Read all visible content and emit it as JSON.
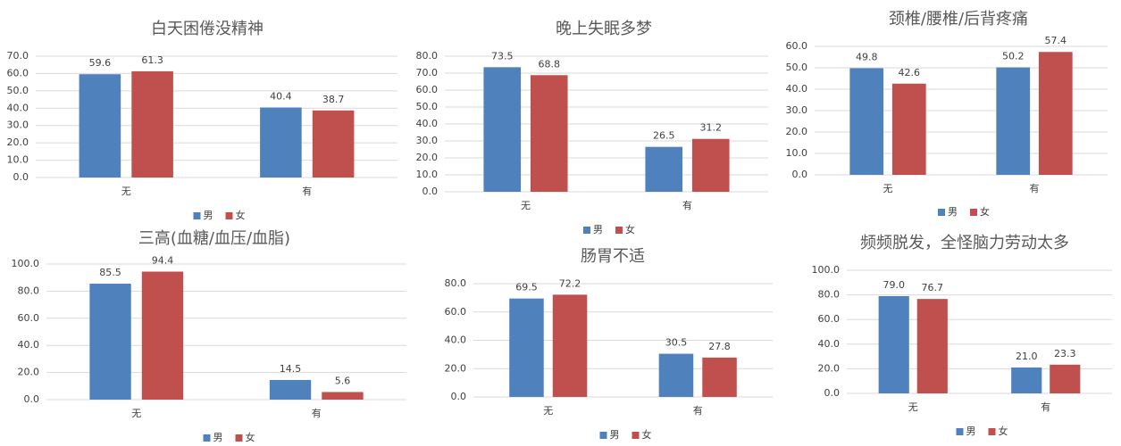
{
  "chart_data": [
    {
      "type": "bar",
      "title": "白天困倦没精神",
      "categories": [
        "无",
        "有"
      ],
      "series": [
        {
          "name": "男",
          "color": "#4f81bd",
          "values": [
            59.6,
            40.4
          ]
        },
        {
          "name": "女",
          "color": "#c0504d",
          "values": [
            61.3,
            38.7
          ]
        }
      ],
      "ylim": [
        0,
        70
      ],
      "yticks": [
        {
          "value": 0,
          "label": "0.0"
        },
        {
          "value": 10,
          "label": "10.0"
        },
        {
          "value": 20,
          "label": "20.0"
        },
        {
          "value": 30,
          "label": "30.0"
        },
        {
          "value": 40,
          "label": "40.0"
        },
        {
          "value": 50,
          "label": "50.0"
        },
        {
          "value": 60,
          "label": "60.0"
        },
        {
          "value": 70,
          "label": "70.0"
        }
      ],
      "grid": true,
      "legend": "bottom"
    },
    {
      "type": "bar",
      "title": "晚上失眠多梦",
      "categories": [
        "无",
        "有"
      ],
      "series": [
        {
          "name": "男",
          "color": "#4f81bd",
          "values": [
            73.5,
            26.5
          ]
        },
        {
          "name": "女",
          "color": "#c0504d",
          "values": [
            68.8,
            31.2
          ]
        }
      ],
      "ylim": [
        0,
        80
      ],
      "yticks": [
        {
          "value": 0,
          "label": "0.0"
        },
        {
          "value": 10,
          "label": "10.0"
        },
        {
          "value": 20,
          "label": "20.0"
        },
        {
          "value": 30,
          "label": "30.0"
        },
        {
          "value": 40,
          "label": "40.0"
        },
        {
          "value": 50,
          "label": "50.0"
        },
        {
          "value": 60,
          "label": "60.0"
        },
        {
          "value": 70,
          "label": "70.0"
        },
        {
          "value": 80,
          "label": "80.0"
        }
      ],
      "grid": true,
      "legend": "bottom"
    },
    {
      "type": "bar",
      "title": "颈椎/腰椎/后背疼痛",
      "categories": [
        "无",
        "有"
      ],
      "series": [
        {
          "name": "男",
          "color": "#4f81bd",
          "values": [
            49.8,
            50.2
          ]
        },
        {
          "name": "女",
          "color": "#c0504d",
          "values": [
            42.6,
            57.4
          ]
        }
      ],
      "ylim": [
        0,
        60
      ],
      "yticks": [
        {
          "value": 0,
          "label": "0.0"
        },
        {
          "value": 10,
          "label": "10.0"
        },
        {
          "value": 20,
          "label": "20.0"
        },
        {
          "value": 30,
          "label": "30.0"
        },
        {
          "value": 40,
          "label": "40.0"
        },
        {
          "value": 50,
          "label": "50.0"
        },
        {
          "value": 60,
          "label": "60.0"
        }
      ],
      "grid": true,
      "legend": "bottom"
    },
    {
      "type": "bar",
      "title": "三高(血糖/血压/血脂)",
      "categories": [
        "无",
        "有"
      ],
      "series": [
        {
          "name": "男",
          "color": "#4f81bd",
          "values": [
            85.5,
            14.5
          ]
        },
        {
          "name": "女",
          "color": "#c0504d",
          "values": [
            94.4,
            5.6
          ]
        }
      ],
      "ylim": [
        0,
        100
      ],
      "yticks": [
        {
          "value": 0,
          "label": "0.0"
        },
        {
          "value": 20,
          "label": "20.0"
        },
        {
          "value": 40,
          "label": "40.0"
        },
        {
          "value": 60,
          "label": "60.0"
        },
        {
          "value": 80,
          "label": "80.0"
        },
        {
          "value": 100,
          "label": "100.0"
        }
      ],
      "grid": true,
      "legend": "bottom"
    },
    {
      "type": "bar",
      "title": "肠胃不适",
      "categories": [
        "无",
        "有"
      ],
      "series": [
        {
          "name": "男",
          "color": "#4f81bd",
          "values": [
            69.5,
            30.5
          ]
        },
        {
          "name": "女",
          "color": "#c0504d",
          "values": [
            72.2,
            27.8
          ]
        }
      ],
      "ylim": [
        0,
        80
      ],
      "yticks": [
        {
          "value": 0,
          "label": "0.0"
        },
        {
          "value": 20,
          "label": "20.0"
        },
        {
          "value": 40,
          "label": "40.0"
        },
        {
          "value": 60,
          "label": "60.0"
        },
        {
          "value": 80,
          "label": "80.0"
        }
      ],
      "grid": true,
      "legend": "bottom"
    },
    {
      "type": "bar",
      "title": "频频脱发，全怪脑力劳动太多",
      "categories": [
        "无",
        "有"
      ],
      "series": [
        {
          "name": "男",
          "color": "#4f81bd",
          "values": [
            79,
            21
          ],
          "value_labels": [
            "79.0",
            "21.0"
          ]
        },
        {
          "name": "女",
          "color": "#c0504d",
          "values": [
            76.7,
            23.3
          ]
        }
      ],
      "ylim": [
        0,
        100
      ],
      "yticks": [
        {
          "value": 0,
          "label": "0.0"
        },
        {
          "value": 20,
          "label": "20.0"
        },
        {
          "value": 40,
          "label": "40.0"
        },
        {
          "value": 60,
          "label": "60.0"
        },
        {
          "value": 80,
          "label": "80.0"
        },
        {
          "value": 100,
          "label": "100.0"
        }
      ],
      "grid": true,
      "legend": "bottom"
    }
  ]
}
